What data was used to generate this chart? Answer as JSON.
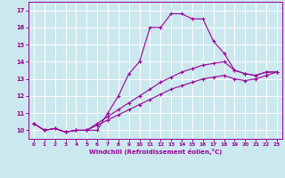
{
  "xlabel": "Windchill (Refroidissement éolien,°C)",
  "bg_color": "#cbe8ef",
  "line_color": "#990099",
  "grid_color": "#ffffff",
  "xlim": [
    -0.5,
    23.5
  ],
  "ylim": [
    9.5,
    17.5
  ],
  "yticks": [
    10,
    11,
    12,
    13,
    14,
    15,
    16,
    17
  ],
  "xticks": [
    0,
    1,
    2,
    3,
    4,
    5,
    6,
    7,
    8,
    9,
    10,
    11,
    12,
    13,
    14,
    15,
    16,
    17,
    18,
    19,
    20,
    21,
    22,
    23
  ],
  "series": [
    {
      "x": [
        0,
        1,
        2,
        3,
        4,
        5,
        6,
        7,
        8,
        9,
        10,
        11,
        12,
        13,
        14,
        15,
        16,
        17,
        18,
        19,
        20,
        21,
        22,
        23
      ],
      "y": [
        10.4,
        10.0,
        10.1,
        9.9,
        10.0,
        10.0,
        10.0,
        11.0,
        12.0,
        13.3,
        14.0,
        16.0,
        16.0,
        16.8,
        16.8,
        16.5,
        16.5,
        15.2,
        14.5,
        13.5,
        13.3,
        13.2,
        13.4,
        13.4
      ]
    },
    {
      "x": [
        0,
        1,
        2,
        3,
        4,
        5,
        6,
        7,
        8,
        9,
        10,
        11,
        12,
        13,
        14,
        15,
        16,
        17,
        18,
        19,
        20,
        21,
        22,
        23
      ],
      "y": [
        10.4,
        10.0,
        10.1,
        9.9,
        10.0,
        10.0,
        10.4,
        10.8,
        11.2,
        11.6,
        12.0,
        12.4,
        12.8,
        13.1,
        13.4,
        13.6,
        13.8,
        13.9,
        14.0,
        13.5,
        13.3,
        13.2,
        13.4,
        13.4
      ]
    },
    {
      "x": [
        0,
        1,
        2,
        3,
        4,
        5,
        6,
        7,
        8,
        9,
        10,
        11,
        12,
        13,
        14,
        15,
        16,
        17,
        18,
        19,
        20,
        21,
        22,
        23
      ],
      "y": [
        10.4,
        10.0,
        10.1,
        9.9,
        10.0,
        10.0,
        10.3,
        10.6,
        10.9,
        11.2,
        11.5,
        11.8,
        12.1,
        12.4,
        12.6,
        12.8,
        13.0,
        13.1,
        13.2,
        13.0,
        12.9,
        13.0,
        13.2,
        13.4
      ]
    }
  ]
}
